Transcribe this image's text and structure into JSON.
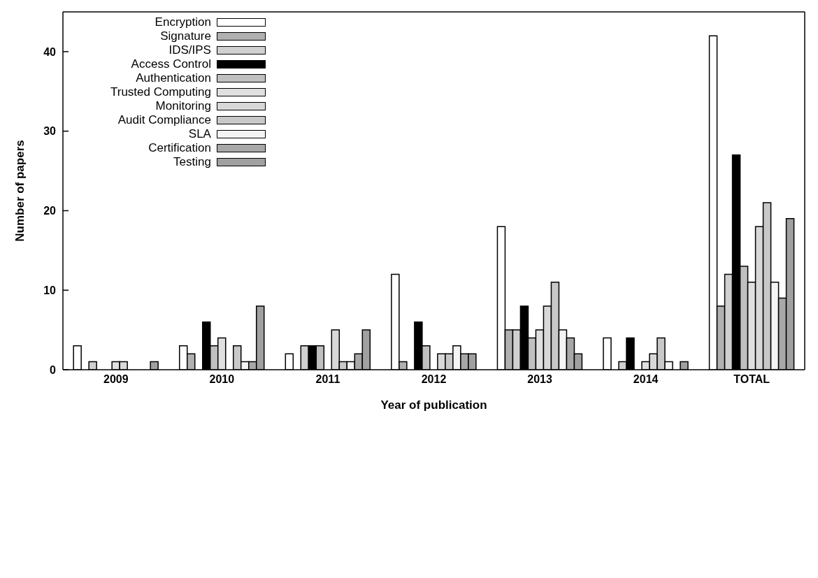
{
  "chart_data": {
    "type": "bar",
    "xlabel": "Year of publication",
    "ylabel": "Number of papers",
    "categories": [
      "2009",
      "2010",
      "2011",
      "2012",
      "2013",
      "2014",
      "TOTAL"
    ],
    "series": [
      {
        "name": "Encryption",
        "color": "#ffffff",
        "values": [
          3,
          3,
          2,
          12,
          18,
          4,
          42
        ]
      },
      {
        "name": "Signature",
        "color": "#b0b0b0",
        "values": [
          0,
          2,
          0,
          1,
          5,
          0,
          8
        ]
      },
      {
        "name": "IDS/IPS",
        "color": "#d0d0d0",
        "values": [
          1,
          0,
          3,
          0,
          5,
          1,
          12
        ]
      },
      {
        "name": "Access Control",
        "color": "#000000",
        "values": [
          0,
          6,
          3,
          6,
          8,
          4,
          27
        ]
      },
      {
        "name": "Authentication",
        "color": "#c0c0c0",
        "values": [
          0,
          3,
          3,
          3,
          4,
          0,
          13
        ]
      },
      {
        "name": "Trusted Computing",
        "color": "#e0e0e0",
        "values": [
          1,
          4,
          0,
          0,
          5,
          1,
          11
        ]
      },
      {
        "name": "Monitoring",
        "color": "#d8d8d8",
        "values": [
          1,
          0,
          5,
          2,
          8,
          2,
          18
        ]
      },
      {
        "name": "Audit Compliance",
        "color": "#c8c8c8",
        "values": [
          0,
          3,
          1,
          2,
          11,
          4,
          21
        ]
      },
      {
        "name": "SLA",
        "color": "#f4f4f4",
        "values": [
          0,
          1,
          1,
          3,
          5,
          1,
          11
        ]
      },
      {
        "name": "Certification",
        "color": "#a8a8a8",
        "values": [
          0,
          1,
          2,
          2,
          4,
          0,
          9
        ]
      },
      {
        "name": "Testing",
        "color": "#a0a0a0",
        "values": [
          1,
          8,
          5,
          2,
          2,
          1,
          19
        ]
      }
    ],
    "ylim": [
      0,
      45
    ],
    "yticks": [
      0,
      10,
      20,
      30,
      40
    ],
    "grid": false,
    "legend": "top left"
  }
}
